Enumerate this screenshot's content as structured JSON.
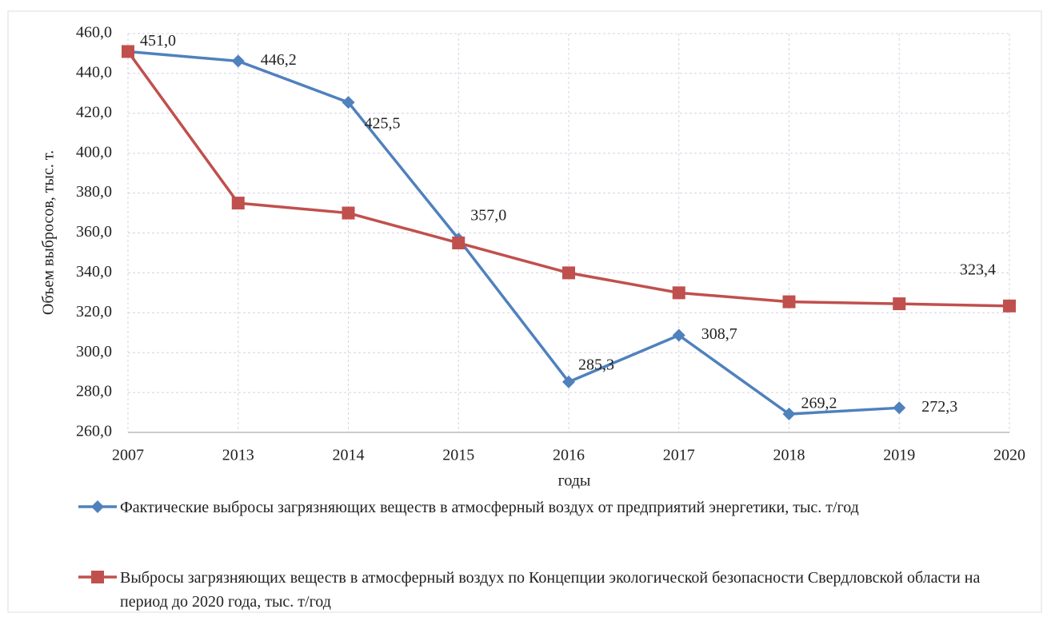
{
  "chart_data": {
    "type": "line",
    "categories": [
      "2007",
      "2013",
      "2014",
      "2015",
      "2016",
      "2017",
      "2018",
      "2019",
      "2020"
    ],
    "series": [
      {
        "name": "Фактические выбросы загрязняющих веществ в атмосферный воздух от предприятий энергетики, тыс. т/год",
        "color": "#4f81bd",
        "marker": "diamond",
        "values": [
          451.0,
          446.2,
          425.5,
          357.0,
          285.3,
          308.7,
          269.2,
          272.3,
          null
        ],
        "value_labels": [
          "451,0",
          "446,2",
          "425,5",
          "357,0",
          "285,3",
          "308,7",
          "269,2",
          "272,3",
          null
        ]
      },
      {
        "name": "Выбросы загрязняющих веществ в атмосферный воздух по Концепции экологической безопасности Свердловской области на период до 2020 года, тыс. т/год",
        "color": "#c0504d",
        "marker": "square",
        "values": [
          451.0,
          375.0,
          370.0,
          355.0,
          340.0,
          330.0,
          325.5,
          324.5,
          323.4
        ],
        "value_labels": [
          null,
          null,
          null,
          null,
          null,
          null,
          null,
          null,
          "323,4"
        ]
      }
    ],
    "xlabel": "годы",
    "ylabel": "Объем выбросов, тыс. т.",
    "ylim": [
      260,
      460
    ],
    "yticks": [
      {
        "value": 260,
        "label": "260,0"
      },
      {
        "value": 280,
        "label": "280,0"
      },
      {
        "value": 300,
        "label": "300,0"
      },
      {
        "value": 320,
        "label": "320,0"
      },
      {
        "value": 340,
        "label": "340,0"
      },
      {
        "value": 360,
        "label": "360,0"
      },
      {
        "value": 380,
        "label": "380,0"
      },
      {
        "value": 400,
        "label": "400,0"
      },
      {
        "value": 420,
        "label": "420,0"
      },
      {
        "value": 440,
        "label": "440,0"
      },
      {
        "value": 460,
        "label": "460,0"
      }
    ],
    "grid": true,
    "legend": "bottom"
  }
}
